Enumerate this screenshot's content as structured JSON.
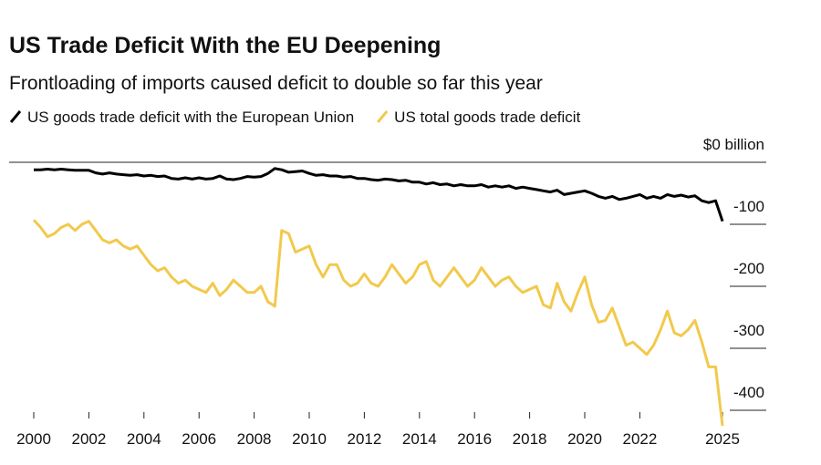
{
  "chart_data": {
    "type": "line",
    "title": "US Trade Deficit With the EU Deepening",
    "subtitle": "Frontloading of imports caused deficit to double so far this year",
    "x": [
      2000,
      2000.25,
      2000.5,
      2000.75,
      2001,
      2001.25,
      2001.5,
      2001.75,
      2002,
      2002.25,
      2002.5,
      2002.75,
      2003,
      2003.25,
      2003.5,
      2003.75,
      2004,
      2004.25,
      2004.5,
      2004.75,
      2005,
      2005.25,
      2005.5,
      2005.75,
      2006,
      2006.25,
      2006.5,
      2006.75,
      2007,
      2007.25,
      2007.5,
      2007.75,
      2008,
      2008.25,
      2008.5,
      2008.75,
      2009,
      2009.25,
      2009.5,
      2009.75,
      2010,
      2010.25,
      2010.5,
      2010.75,
      2011,
      2011.25,
      2011.5,
      2011.75,
      2012,
      2012.25,
      2012.5,
      2012.75,
      2013,
      2013.25,
      2013.5,
      2013.75,
      2014,
      2014.25,
      2014.5,
      2014.75,
      2015,
      2015.25,
      2015.5,
      2015.75,
      2016,
      2016.25,
      2016.5,
      2016.75,
      2017,
      2017.25,
      2017.5,
      2017.75,
      2018,
      2018.25,
      2018.5,
      2018.75,
      2019,
      2019.25,
      2019.5,
      2019.75,
      2020,
      2020.25,
      2020.5,
      2020.75,
      2021,
      2021.25,
      2021.5,
      2021.75,
      2022,
      2022.25,
      2022.5,
      2022.75,
      2023,
      2023.25,
      2023.5,
      2023.75,
      2024,
      2024.25,
      2024.5,
      2024.75,
      2025
    ],
    "series": [
      {
        "name": "US goods trade deficit with the European Union",
        "color": "#000000",
        "values": [
          -12,
          -12,
          -11,
          -12,
          -11,
          -12,
          -13,
          -13,
          -13,
          -17,
          -19,
          -17,
          -19,
          -20,
          -21,
          -20,
          -22,
          -21,
          -23,
          -22,
          -26,
          -27,
          -25,
          -27,
          -25,
          -27,
          -26,
          -22,
          -27,
          -28,
          -26,
          -23,
          -24,
          -23,
          -18,
          -10,
          -12,
          -16,
          -15,
          -14,
          -18,
          -21,
          -20,
          -22,
          -22,
          -24,
          -23,
          -26,
          -26,
          -28,
          -29,
          -27,
          -28,
          -30,
          -29,
          -32,
          -32,
          -35,
          -33,
          -36,
          -35,
          -38,
          -36,
          -38,
          -38,
          -36,
          -40,
          -38,
          -40,
          -38,
          -42,
          -40,
          -42,
          -44,
          -46,
          -48,
          -45,
          -52,
          -50,
          -48,
          -46,
          -50,
          -55,
          -58,
          -55,
          -60,
          -58,
          -55,
          -52,
          -58,
          -55,
          -58,
          -52,
          -55,
          -53,
          -56,
          -54,
          -62,
          -65,
          -62,
          -95
        ]
      },
      {
        "name": "US total goods trade deficit",
        "color": "#f2c94c",
        "values": [
          -93,
          -105,
          -120,
          -115,
          -105,
          -100,
          -110,
          -100,
          -95,
          -110,
          -125,
          -130,
          -125,
          -135,
          -140,
          -135,
          -150,
          -165,
          -175,
          -170,
          -185,
          -195,
          -190,
          -200,
          -205,
          -210,
          -195,
          -215,
          -205,
          -190,
          -200,
          -210,
          -210,
          -200,
          -225,
          -232,
          -110,
          -115,
          -145,
          -140,
          -135,
          -165,
          -185,
          -165,
          -165,
          -190,
          -200,
          -195,
          -180,
          -195,
          -200,
          -185,
          -165,
          -180,
          -195,
          -185,
          -165,
          -160,
          -190,
          -200,
          -185,
          -170,
          -185,
          -200,
          -190,
          -170,
          -185,
          -200,
          -190,
          -185,
          -200,
          -210,
          -205,
          -200,
          -230,
          -235,
          -195,
          -225,
          -240,
          -210,
          -185,
          -230,
          -258,
          -255,
          -235,
          -265,
          -295,
          -290,
          -300,
          -310,
          -295,
          -270,
          -240,
          -275,
          -280,
          -270,
          -255,
          -290,
          -330,
          -330,
          -425
        ]
      }
    ],
    "xlim": [
      2000,
      2025
    ],
    "xticks": [
      2000,
      2002,
      2004,
      2006,
      2008,
      2010,
      2012,
      2014,
      2016,
      2018,
      2020,
      2022,
      2025
    ],
    "ylim": [
      -425,
      0
    ],
    "yticks": [
      {
        "value": 0,
        "label": "$0 billion"
      },
      -100,
      -200,
      -300,
      -400
    ]
  }
}
